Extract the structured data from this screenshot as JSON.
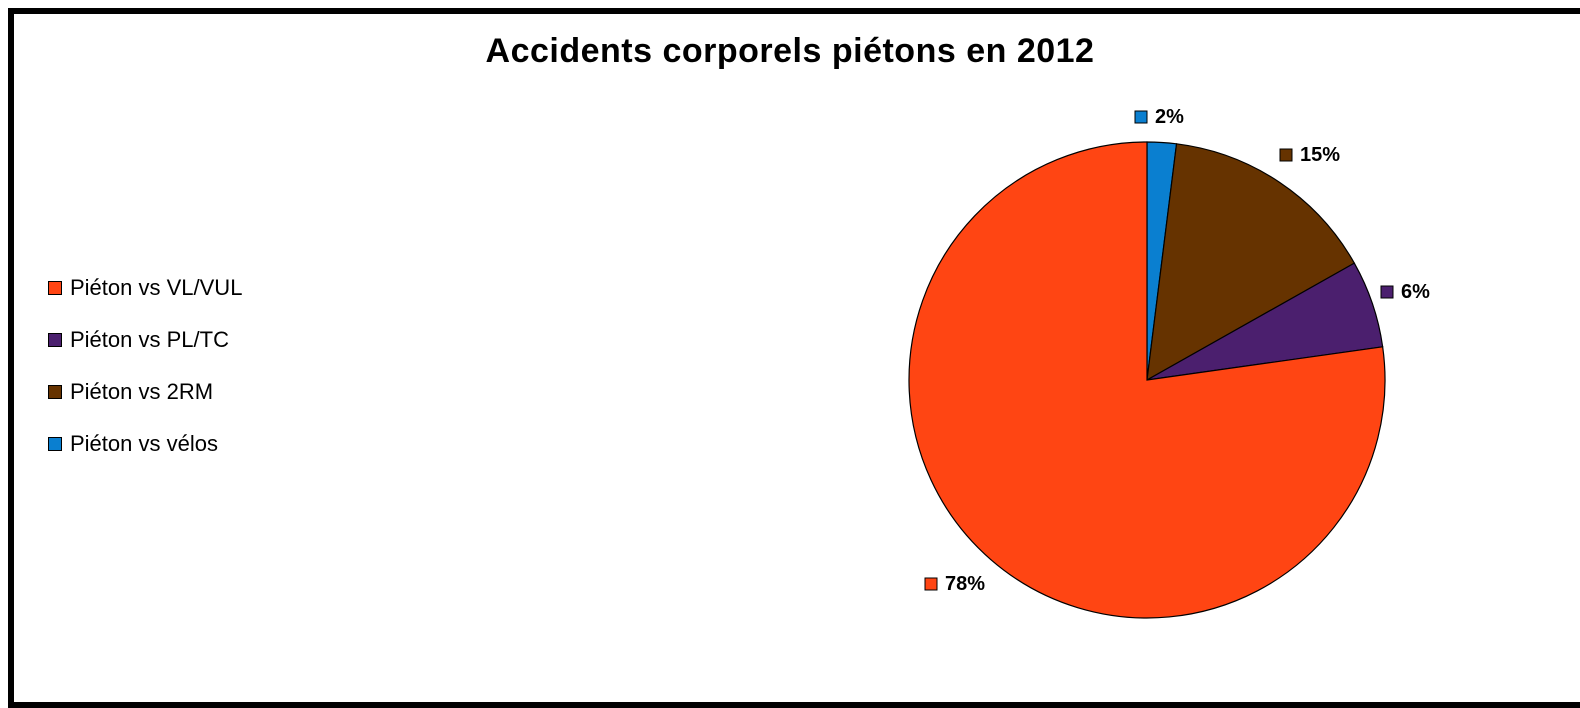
{
  "chart_data": {
    "type": "pie",
    "title": "Accidents corporels piétons en 2012",
    "legend_position": "left",
    "slices": [
      {
        "name": "Piéton vs vélos",
        "value": 2,
        "label": "2%",
        "color": "#0a7fd0"
      },
      {
        "name": "Piéton vs 2RM",
        "value": 15,
        "label": "15%",
        "color": "#663300"
      },
      {
        "name": "Piéton vs PL/TC",
        "value": 6,
        "label": "6%",
        "color": "#4b1f6e"
      },
      {
        "name": "Piéton vs VL/VUL",
        "value": 78,
        "label": "78%",
        "color": "#ff4513"
      }
    ],
    "legend_order": [
      "Piéton vs VL/VUL",
      "Piéton vs PL/TC",
      "Piéton vs 2RM",
      "Piéton vs vélos"
    ]
  }
}
